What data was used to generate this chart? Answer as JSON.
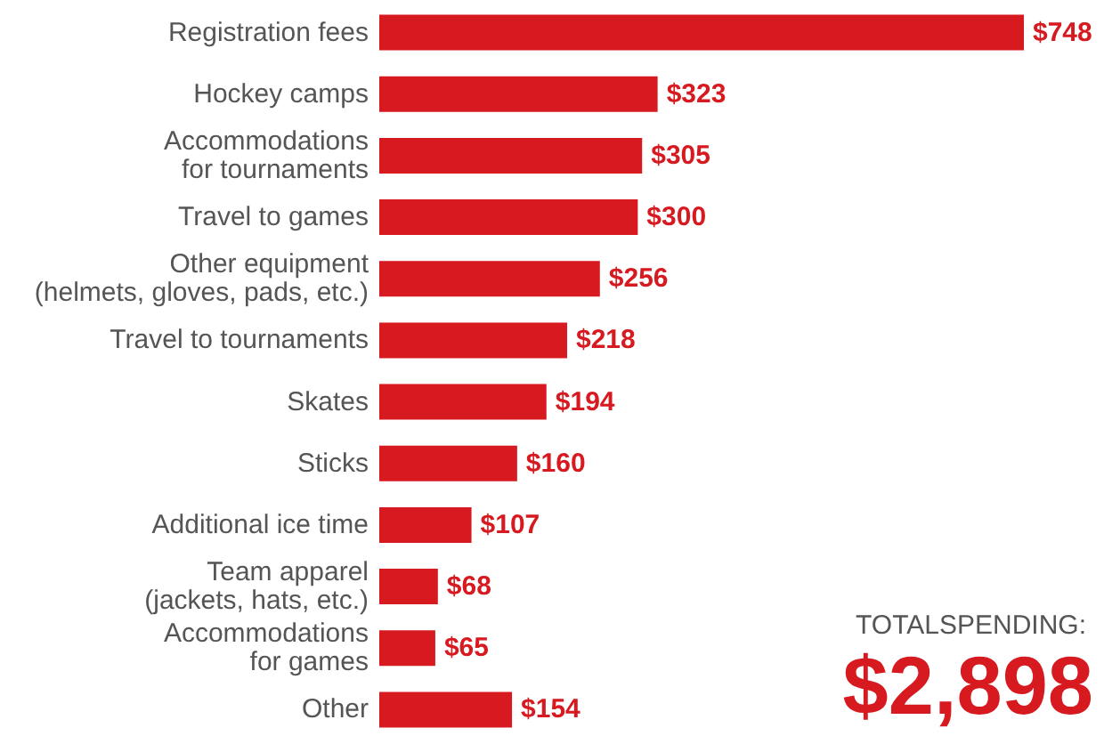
{
  "chart_data": {
    "type": "bar",
    "orientation": "horizontal",
    "color": "#d71920",
    "categories": [
      "Registration fees",
      "Hockey camps",
      "Accommodations\nfor tournaments",
      "Travel to games",
      "Other equipment\n(helmets, gloves, pads, etc.)",
      "Travel to tournaments",
      "Skates",
      "Sticks",
      "Additional ice time",
      "Team apparel\n(jackets, hats, etc.)",
      "Accommodations\nfor games",
      "Other"
    ],
    "values": [
      748,
      323,
      305,
      300,
      256,
      218,
      194,
      160,
      107,
      68,
      65,
      154
    ],
    "value_labels": [
      "$748",
      "$323",
      "$305",
      "$300",
      "$256",
      "$218",
      "$194",
      "$160",
      "$107",
      "$68",
      "$65",
      "$154"
    ],
    "annotations": [
      "TOTALSPENDING:",
      "$2,898"
    ]
  }
}
